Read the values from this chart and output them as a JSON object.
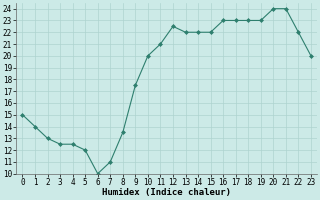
{
  "x": [
    0,
    1,
    2,
    3,
    4,
    5,
    6,
    7,
    8,
    9,
    10,
    11,
    12,
    13,
    14,
    15,
    16,
    17,
    18,
    19,
    20,
    21,
    22,
    23
  ],
  "y": [
    15,
    14,
    13,
    12.5,
    12.5,
    12,
    10,
    11,
    13.5,
    17.5,
    20,
    21,
    22.5,
    22,
    22,
    22,
    23,
    23,
    23,
    23,
    24,
    24,
    22,
    20
  ],
  "xlabel": "Humidex (Indice chaleur)",
  "xlim": [
    -0.5,
    23.5
  ],
  "ylim": [
    10,
    24.5
  ],
  "yticks": [
    10,
    11,
    12,
    13,
    14,
    15,
    16,
    17,
    18,
    19,
    20,
    21,
    22,
    23,
    24
  ],
  "xticks": [
    0,
    1,
    2,
    3,
    4,
    5,
    6,
    7,
    8,
    9,
    10,
    11,
    12,
    13,
    14,
    15,
    16,
    17,
    18,
    19,
    20,
    21,
    22,
    23
  ],
  "line_color": "#2e7f6e",
  "marker_color": "#2e7f6e",
  "bg_color": "#cceae7",
  "grid_color": "#aed4d0",
  "fig_bg": "#cceae7",
  "label_fontsize": 6.5,
  "tick_fontsize": 5.5
}
